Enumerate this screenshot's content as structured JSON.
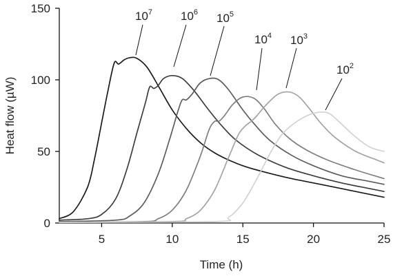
{
  "chart_data": {
    "type": "line",
    "xlabel": "Time (h)",
    "ylabel": "Heat flow (µW)",
    "xlim": [
      2,
      25
    ],
    "ylim": [
      0,
      150
    ],
    "xticks": [
      5,
      10,
      15,
      20,
      25
    ],
    "yticks": [
      0,
      50,
      100,
      150
    ],
    "grid": false,
    "legend": "none",
    "series": [
      {
        "name": "10",
        "exp": "7",
        "color": "#1a1a1a",
        "x": [
          2,
          3,
          4,
          4.5,
          5,
          5.5,
          5.9,
          6.2,
          6.6,
          7.0,
          7.5,
          8.2,
          9.0,
          10.0,
          11.0,
          12.0,
          13.0,
          14.0,
          15.0,
          16.0,
          18.0,
          20.0,
          22.0,
          24.0,
          25.0
        ],
        "y": [
          3,
          8,
          25,
          45,
          70,
          95,
          112,
          111,
          114,
          115.5,
          115,
          109,
          96,
          79,
          66,
          56,
          49,
          44,
          40,
          37,
          32,
          28,
          24,
          20,
          18
        ]
      },
      {
        "name": "10",
        "exp": "6",
        "color": "#3c3c3c",
        "x": [
          2,
          4,
          5,
          6,
          6.8,
          7.5,
          8.1,
          8.4,
          8.7,
          9.0,
          9.4,
          10.0,
          10.7,
          11.5,
          12.5,
          13.5,
          14.5,
          16.0,
          18.0,
          20.0,
          22.0,
          24.0,
          25.0
        ],
        "y": [
          2,
          3,
          6,
          17,
          38,
          63,
          84,
          95,
          94,
          96,
          101,
          103,
          101,
          93,
          80,
          68,
          58,
          48,
          39,
          33,
          28,
          24,
          22
        ]
      },
      {
        "name": "10",
        "exp": "5",
        "color": "#5c5c5c",
        "x": [
          2,
          6,
          7,
          8,
          9,
          9.8,
          10.4,
          10.7,
          11.0,
          11.4,
          12.0,
          12.7,
          13.3,
          14.0,
          15.0,
          16.0,
          17.0,
          18.5,
          20.0,
          22.0,
          24.0,
          25.0
        ],
        "y": [
          1,
          2,
          5,
          14,
          34,
          58,
          78,
          86,
          86,
          90,
          98,
          101,
          100,
          93,
          79,
          67,
          57,
          47,
          40,
          33,
          29,
          27
        ]
      },
      {
        "name": "10",
        "exp": "4",
        "color": "#7e7e7e",
        "x": [
          2,
          8,
          9,
          10,
          11,
          12,
          12.6,
          13.0,
          13.3,
          13.7,
          14.3,
          15.0,
          15.8,
          16.5,
          17.3,
          18.3,
          19.5,
          21.0,
          23.0,
          25.0
        ],
        "y": [
          0.5,
          1,
          3,
          9,
          23,
          47,
          65,
          71,
          71,
          75,
          83,
          88,
          87,
          80,
          69,
          59,
          51,
          44,
          37,
          31
        ]
      },
      {
        "name": "10",
        "exp": "3",
        "color": "#a3a3a3",
        "x": [
          2,
          10,
          11,
          12,
          13,
          14,
          14.7,
          15.2,
          15.6,
          16.0,
          16.6,
          17.5,
          18.3,
          19.0,
          19.7,
          20.5,
          21.5,
          23.0,
          24.5,
          25.0
        ],
        "y": [
          0.5,
          1,
          3,
          9,
          23,
          46,
          62,
          68,
          71,
          75,
          82,
          90,
          91.5,
          88,
          80,
          70,
          60,
          50,
          44,
          42
        ]
      },
      {
        "name": "10",
        "exp": "2",
        "color": "#d2d2d2",
        "x": [
          2,
          13,
          14,
          15,
          16,
          17,
          17.7,
          18.3,
          19.0,
          19.8,
          20.6,
          21.2,
          22.0,
          23.0,
          24.0,
          25.0
        ],
        "y": [
          0.5,
          1,
          4,
          14,
          31,
          50,
          61,
          67,
          72,
          76,
          77.5,
          76,
          69,
          60,
          53,
          50
        ]
      }
    ]
  }
}
